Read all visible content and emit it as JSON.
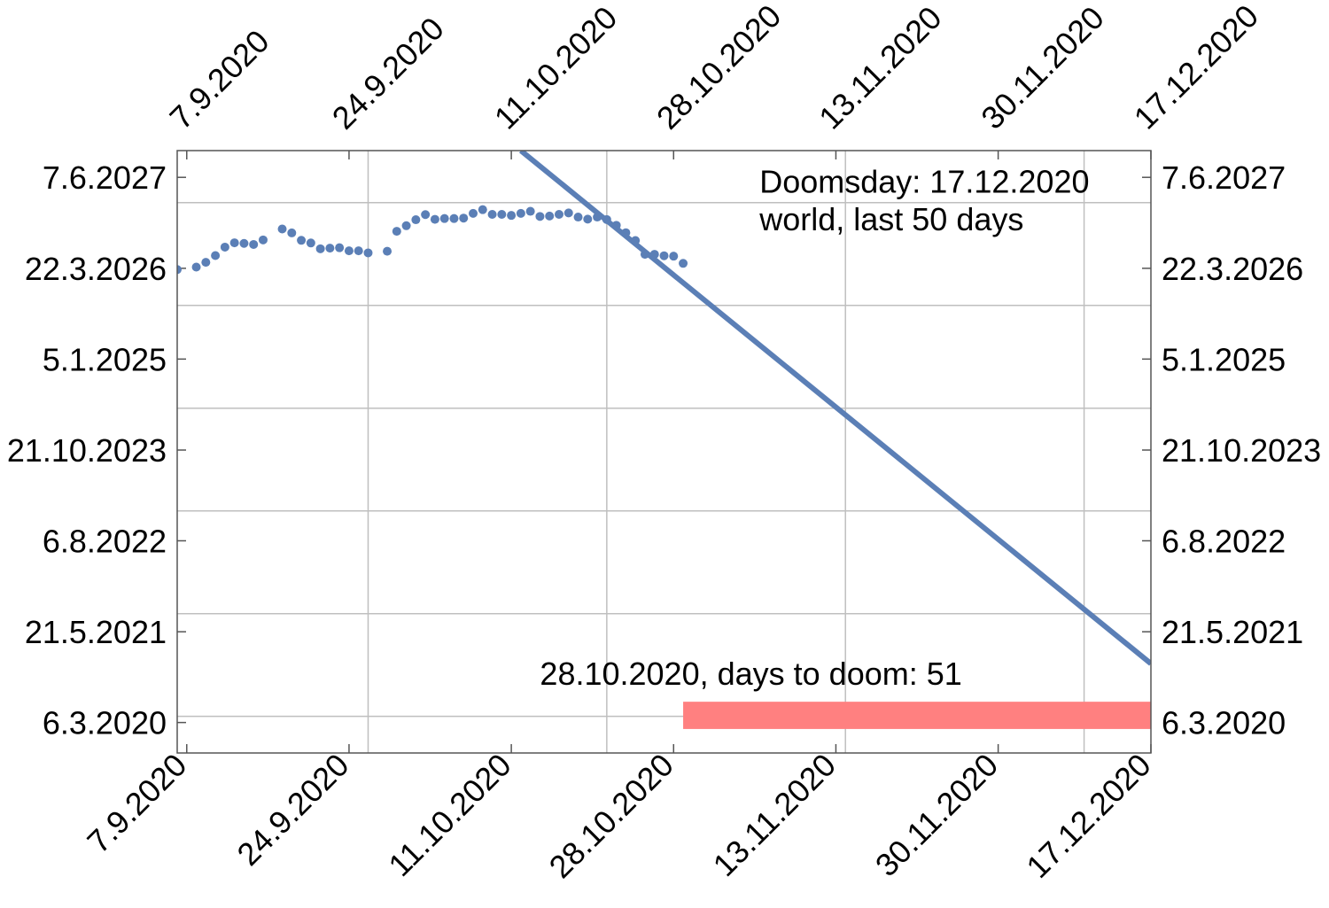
{
  "chart_data": {
    "type": "scatter",
    "x_axis": {
      "kind": "date",
      "range": [
        "2020-09-06",
        "2020-12-17"
      ],
      "tick_labels": [
        "7.9.2020",
        "24.9.2020",
        "11.10.2020",
        "28.10.2020",
        "13.11.2020",
        "30.11.2020",
        "17.12.2020"
      ],
      "tick_dates": [
        "2020-09-07",
        "2020-09-24",
        "2020-10-11",
        "2020-10-28",
        "2020-11-14",
        "2020-12-01",
        "2020-12-17"
      ],
      "gridlines": [
        "2020-09-26",
        "2020-10-21",
        "2020-11-15",
        "2020-12-10"
      ]
    },
    "y_axis": {
      "kind": "date",
      "range": [
        "2019-10-10",
        "2027-10-15"
      ],
      "tick_labels": [
        "6.3.2020",
        "21.5.2021",
        "6.8.2022",
        "21.10.2023",
        "5.1.2025",
        "22.3.2026",
        "7.6.2027"
      ],
      "tick_dates": [
        "2020-03-06",
        "2021-05-21",
        "2022-08-06",
        "2023-10-21",
        "2025-01-05",
        "2026-03-22",
        "2027-06-07"
      ],
      "gridlines": [
        "2020-04-05",
        "2021-08-17",
        "2022-12-29",
        "2024-05-11",
        "2025-09-23",
        "2027-02-04"
      ]
    },
    "grid": true,
    "series": [
      {
        "type": "scatter",
        "color": "#5b7fb6",
        "points": [
          [
            "2020-09-06",
            "2026-03-16"
          ],
          [
            "2020-09-08",
            "2026-03-28"
          ],
          [
            "2020-09-09",
            "2026-04-20"
          ],
          [
            "2020-09-10",
            "2026-05-23"
          ],
          [
            "2020-09-11",
            "2026-07-03"
          ],
          [
            "2020-09-12",
            "2026-07-24"
          ],
          [
            "2020-09-13",
            "2026-07-21"
          ],
          [
            "2020-09-14",
            "2026-07-16"
          ],
          [
            "2020-09-15",
            "2026-08-07"
          ],
          [
            "2020-09-17",
            "2026-09-29"
          ],
          [
            "2020-09-18",
            "2026-09-10"
          ],
          [
            "2020-09-19",
            "2026-08-05"
          ],
          [
            "2020-09-20",
            "2026-07-23"
          ],
          [
            "2020-09-21",
            "2026-06-25"
          ],
          [
            "2020-09-22",
            "2026-06-28"
          ],
          [
            "2020-09-23",
            "2026-06-30"
          ],
          [
            "2020-09-24",
            "2026-06-15"
          ],
          [
            "2020-09-25",
            "2026-06-15"
          ],
          [
            "2020-09-26",
            "2026-06-05"
          ],
          [
            "2020-09-28",
            "2026-06-13"
          ],
          [
            "2020-09-29",
            "2026-09-18"
          ],
          [
            "2020-09-30",
            "2026-10-15"
          ],
          [
            "2020-10-01",
            "2026-11-13"
          ],
          [
            "2020-10-02",
            "2026-12-08"
          ],
          [
            "2020-10-03",
            "2026-11-15"
          ],
          [
            "2020-10-04",
            "2026-11-19"
          ],
          [
            "2020-10-05",
            "2026-11-19"
          ],
          [
            "2020-10-06",
            "2026-11-21"
          ],
          [
            "2020-10-07",
            "2026-12-14"
          ],
          [
            "2020-10-08",
            "2027-01-01"
          ],
          [
            "2020-10-09",
            "2026-12-09"
          ],
          [
            "2020-10-10",
            "2026-12-09"
          ],
          [
            "2020-10-11",
            "2026-12-04"
          ],
          [
            "2020-10-12",
            "2026-12-14"
          ],
          [
            "2020-10-13",
            "2026-12-24"
          ],
          [
            "2020-10-14",
            "2026-11-29"
          ],
          [
            "2020-10-15",
            "2026-12-01"
          ],
          [
            "2020-10-16",
            "2026-12-09"
          ],
          [
            "2020-10-17",
            "2026-12-16"
          ],
          [
            "2020-10-18",
            "2026-11-26"
          ],
          [
            "2020-10-19",
            "2026-11-16"
          ],
          [
            "2020-10-20",
            "2026-11-26"
          ],
          [
            "2020-10-21",
            "2026-11-14"
          ],
          [
            "2020-10-22",
            "2026-10-17"
          ],
          [
            "2020-10-23",
            "2026-09-11"
          ],
          [
            "2020-10-24",
            "2026-08-04"
          ],
          [
            "2020-10-25",
            "2026-05-29"
          ],
          [
            "2020-10-26",
            "2026-05-29"
          ],
          [
            "2020-10-27",
            "2026-05-22"
          ],
          [
            "2020-10-28",
            "2026-05-20"
          ],
          [
            "2020-10-29",
            "2026-04-15"
          ]
        ]
      },
      {
        "type": "line",
        "color": "#5b7fb6",
        "points": [
          [
            "2020-10-12",
            "2027-10-15"
          ],
          [
            "2020-12-17",
            "2020-12-17"
          ]
        ]
      },
      {
        "type": "bar",
        "color": "#ff8080",
        "points": [
          [
            "2020-10-29",
            "2019-10-10"
          ],
          [
            "2020-12-17",
            "2020-06-15"
          ]
        ]
      }
    ],
    "annotations": [
      {
        "text": "Doomsday: 17.12.2020",
        "at": [
          "2020-11-06",
          "2027-03-25"
        ]
      },
      {
        "text": "world, last 50 days",
        "at": [
          "2020-11-06",
          "2026-09-22"
        ]
      },
      {
        "text": "28.10.2020, days to doom: 51",
        "at": [
          "2020-10-14",
          "2020-09-05"
        ]
      }
    ]
  }
}
